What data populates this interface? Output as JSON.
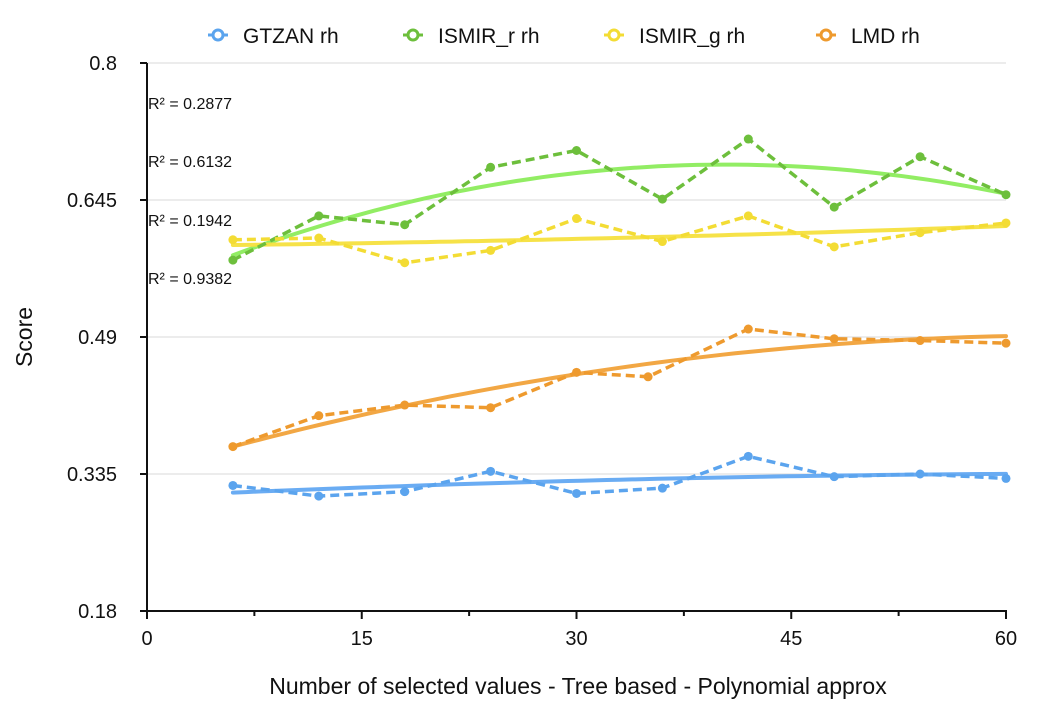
{
  "chart_data": {
    "type": "line",
    "title": "",
    "xlabel": "Number of selected values - Tree based - Polynomial approx",
    "ylabel": "Score",
    "xlim": [
      0,
      60
    ],
    "ylim": [
      0.18,
      0.8
    ],
    "x_ticks": [
      0,
      15,
      30,
      45,
      60
    ],
    "x_tick_labels": [
      "0",
      "15",
      "30",
      "45",
      "60"
    ],
    "y_ticks": [
      0.18,
      0.335,
      0.49,
      0.645,
      0.8
    ],
    "y_tick_labels": [
      "0.18",
      "0.335",
      "0.49",
      "0.645",
      "0.8"
    ],
    "grid": "horizontal",
    "legend_position": "top",
    "series": [
      {
        "name": "GTZAN rh",
        "color": "#5ba4ee",
        "x": [
          6,
          12,
          18,
          24,
          30,
          36,
          42,
          48,
          54,
          60
        ],
        "values": [
          0.322,
          0.31,
          0.315,
          0.338,
          0.313,
          0.319,
          0.355,
          0.332,
          0.335,
          0.33
        ],
        "trend": "polynomial",
        "r2_label": "R² = 0.9382"
      },
      {
        "name": "ISMIR_r rh",
        "color": "#6dbf3c",
        "x": [
          6,
          12,
          18,
          24,
          30,
          36,
          42,
          48,
          54,
          60
        ],
        "values": [
          0.577,
          0.627,
          0.617,
          0.682,
          0.701,
          0.646,
          0.714,
          0.637,
          0.694,
          0.651
        ],
        "trend": "polynomial",
        "r2_label": "R² = 0.6132"
      },
      {
        "name": "ISMIR_g rh",
        "color": "#f3dc34",
        "x": [
          6,
          12,
          18,
          24,
          30,
          36,
          42,
          48,
          54,
          60
        ],
        "values": [
          0.6,
          0.602,
          0.574,
          0.588,
          0.624,
          0.598,
          0.627,
          0.592,
          0.608,
          0.619
        ],
        "trend": "polynomial",
        "r2_label": "R² = 0.1942"
      },
      {
        "name": "LMD rh",
        "color": "#ee9a2e",
        "x": [
          6,
          12,
          18,
          24,
          30,
          35,
          42,
          48,
          54,
          60
        ],
        "values": [
          0.366,
          0.401,
          0.413,
          0.41,
          0.45,
          0.445,
          0.499,
          0.488,
          0.486,
          0.483
        ],
        "trend": "polynomial",
        "r2_label": "R² = 0.2877"
      }
    ],
    "annotations": [
      "R² = 0.2877",
      "R² = 0.6132",
      "R² = 0.1942",
      "R² = 0.9382"
    ]
  }
}
